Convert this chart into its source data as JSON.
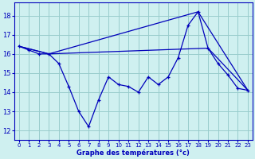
{
  "xlabel": "Graphe des températures (°c)",
  "x_ticks": [
    0,
    1,
    2,
    3,
    4,
    5,
    6,
    7,
    8,
    9,
    10,
    11,
    12,
    13,
    14,
    15,
    16,
    17,
    18,
    19,
    20,
    21,
    22,
    23
  ],
  "yticks": [
    12,
    13,
    14,
    15,
    16,
    17,
    18
  ],
  "line1_x": [
    0,
    1,
    2,
    3,
    4,
    5,
    6,
    7,
    8,
    9,
    10,
    11,
    12,
    13,
    14,
    15,
    16,
    17,
    18,
    19,
    20,
    21,
    22,
    23
  ],
  "line1_y": [
    16.4,
    16.2,
    16.0,
    16.0,
    15.5,
    14.3,
    13.0,
    12.2,
    13.6,
    14.8,
    14.4,
    14.3,
    14.0,
    14.8,
    14.4,
    14.8,
    15.8,
    17.5,
    18.2,
    16.3,
    15.5,
    14.9,
    14.2,
    14.1
  ],
  "line2_x": [
    0,
    3,
    18,
    23
  ],
  "line2_y": [
    16.4,
    16.0,
    18.2,
    14.1
  ],
  "line3_x": [
    0,
    3,
    19,
    23
  ],
  "line3_y": [
    16.4,
    16.0,
    16.3,
    14.1
  ],
  "bg_color": "#cff0f0",
  "line_color": "#0000bb",
  "grid_color": "#99cccc",
  "xlim": [
    -0.5,
    23.5
  ],
  "ylim": [
    11.5,
    18.7
  ]
}
